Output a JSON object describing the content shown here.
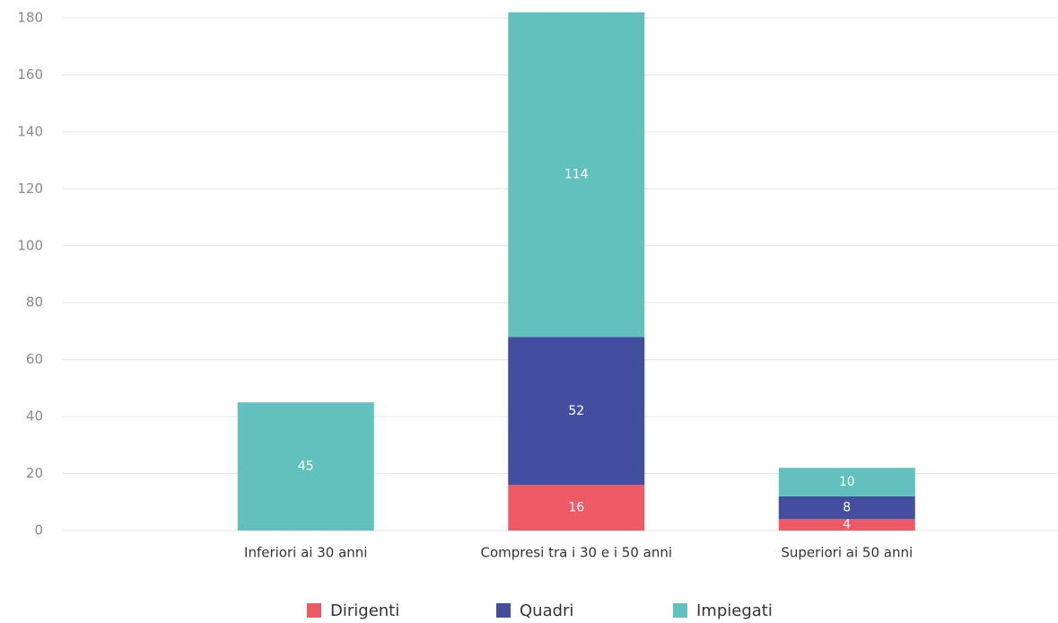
{
  "chart_data": {
    "type": "stacked_bar",
    "categories": [
      "Inferiori ai 30 anni",
      "Compresi tra i 30 e i 50 anni",
      "Superiori ai 50 anni"
    ],
    "series": [
      {
        "name": "Dirigenti",
        "color": "#eb5a65",
        "values": [
          0,
          16,
          4
        ]
      },
      {
        "name": "Quadri",
        "color": "#434f9e",
        "values": [
          0,
          52,
          8
        ]
      },
      {
        "name": "Impiegati",
        "color": "#62c1bc",
        "values": [
          45,
          114,
          10
        ]
      }
    ],
    "ylim": [
      0,
      180
    ],
    "yticks": [
      0,
      20,
      40,
      60,
      80,
      100,
      120,
      140,
      160,
      180
    ],
    "grid": true,
    "legend": "bottom"
  }
}
